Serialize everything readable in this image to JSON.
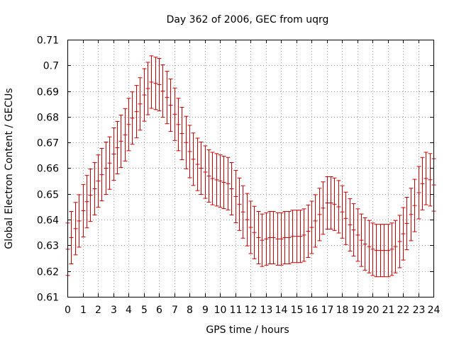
{
  "chart_data": {
    "type": "line",
    "title": "Day 362 of 2006, GEC from uqrg",
    "xlabel": "GPS time / hours",
    "ylabel": "Global Electron Content / GECUs",
    "xlim": [
      0,
      24
    ],
    "ylim": [
      0.61,
      0.71
    ],
    "x_ticks": [
      0,
      1,
      2,
      3,
      4,
      5,
      6,
      7,
      8,
      9,
      10,
      11,
      12,
      13,
      14,
      15,
      16,
      17,
      18,
      19,
      20,
      21,
      22,
      23,
      24
    ],
    "y_ticks": [
      0.61,
      0.62,
      0.63,
      0.64,
      0.65,
      0.66,
      0.67,
      0.68,
      0.69,
      0.7,
      0.71
    ],
    "y_tick_labels": [
      "0.61",
      "0.62",
      "0.63",
      "0.64",
      "0.65",
      "0.66",
      "0.67",
      "0.68",
      "0.69",
      "0.7",
      "0.71"
    ],
    "grid": true,
    "series_color": "#cc0000",
    "error_half_width": 0.0102,
    "series": [
      {
        "name": "GEC",
        "x": [
          0,
          0.25,
          0.5,
          0.75,
          1,
          1.25,
          1.5,
          1.75,
          2,
          2.25,
          2.5,
          2.75,
          3,
          3.25,
          3.5,
          3.75,
          4,
          4.25,
          4.5,
          4.75,
          5,
          5.25,
          5.5,
          5.75,
          6,
          6.25,
          6.5,
          6.75,
          7,
          7.25,
          7.5,
          7.75,
          8,
          8.25,
          8.5,
          8.75,
          9,
          9.25,
          9.5,
          9.75,
          10,
          10.25,
          10.5,
          10.75,
          11,
          11.25,
          11.5,
          11.75,
          12,
          12.25,
          12.5,
          12.75,
          13,
          13.25,
          13.5,
          13.75,
          14,
          14.25,
          14.5,
          14.75,
          15,
          15.25,
          15.5,
          15.75,
          16,
          16.25,
          16.5,
          16.75,
          17,
          17.25,
          17.5,
          17.75,
          18,
          18.25,
          18.5,
          18.75,
          19,
          19.25,
          19.5,
          19.75,
          20,
          20.25,
          20.5,
          20.75,
          21,
          21.25,
          21.5,
          21.75,
          22,
          22.25,
          22.5,
          22.75,
          23,
          23.25,
          23.5,
          23.75,
          24
        ],
        "y": [
          0.6285,
          0.633,
          0.6365,
          0.6395,
          0.6435,
          0.647,
          0.6495,
          0.652,
          0.655,
          0.6575,
          0.66,
          0.662,
          0.6655,
          0.668,
          0.6705,
          0.673,
          0.677,
          0.6795,
          0.682,
          0.685,
          0.6885,
          0.691,
          0.6935,
          0.693,
          0.6925,
          0.69,
          0.6875,
          0.6845,
          0.681,
          0.677,
          0.6735,
          0.67,
          0.6665,
          0.6635,
          0.6615,
          0.66,
          0.6585,
          0.657,
          0.656,
          0.6555,
          0.655,
          0.6545,
          0.654,
          0.652,
          0.649,
          0.646,
          0.643,
          0.64,
          0.637,
          0.635,
          0.633,
          0.632,
          0.6325,
          0.633,
          0.633,
          0.6325,
          0.6325,
          0.633,
          0.633,
          0.6335,
          0.6335,
          0.6335,
          0.634,
          0.6355,
          0.637,
          0.6395,
          0.642,
          0.6445,
          0.6465,
          0.6465,
          0.646,
          0.645,
          0.643,
          0.6405,
          0.638,
          0.636,
          0.634,
          0.632,
          0.6305,
          0.6295,
          0.6285,
          0.628,
          0.628,
          0.628,
          0.628,
          0.6285,
          0.6295,
          0.6315,
          0.6345,
          0.6385,
          0.642,
          0.6455,
          0.6505,
          0.654,
          0.656,
          0.6555,
          0.6535
        ]
      }
    ]
  }
}
